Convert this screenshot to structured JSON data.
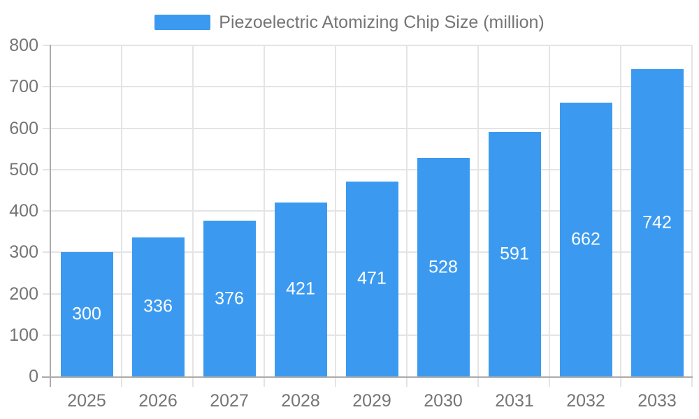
{
  "chart_data": {
    "type": "bar",
    "title": "Piezoelectric Atomizing Chip Size (million)",
    "legend_label": "Piezoelectric Atomizing Chip Size (million)",
    "legend_position": "top-center",
    "categories": [
      "2025",
      "2026",
      "2027",
      "2028",
      "2029",
      "2030",
      "2031",
      "2032",
      "2033"
    ],
    "values": [
      300,
      336,
      376,
      421,
      471,
      528,
      591,
      662,
      742
    ],
    "xlabel": "",
    "ylabel": "",
    "ylim": [
      0,
      800
    ],
    "ytick_step": 100,
    "yticks": [
      0,
      100,
      200,
      300,
      400,
      500,
      600,
      700,
      800
    ],
    "grid": true,
    "bar_value_labels_visible": true,
    "colors": {
      "bar": "#3B9AF0",
      "bar_label": "#FFFFFF",
      "axis_label": "#757575",
      "legend_text": "#757575",
      "grid_line": "#E4E4E4",
      "axis_line": "#ABABAB",
      "background": "#FFFFFF"
    }
  }
}
